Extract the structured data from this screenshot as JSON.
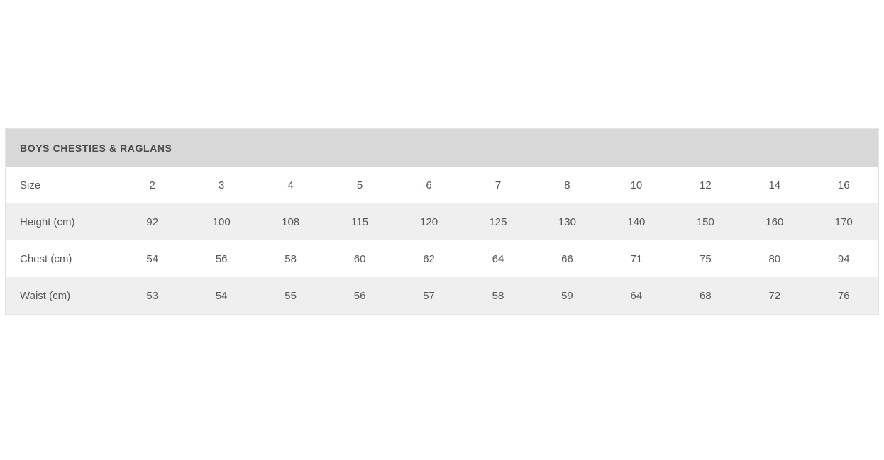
{
  "page": {
    "background_color": "#ffffff"
  },
  "table": {
    "title": "BOYS CHESTIES & RAGLANS",
    "header_bg": "#d8d8d8",
    "title_color": "#4c4c4c",
    "alt_row_bg": "#efefef",
    "cell_text_color": "#55575a",
    "rows": [
      {
        "label": "Size",
        "values": [
          "2",
          "3",
          "4",
          "5",
          "6",
          "7",
          "8",
          "10",
          "12",
          "14",
          "16"
        ]
      },
      {
        "label": "Height (cm)",
        "values": [
          "92",
          "100",
          "108",
          "115",
          "120",
          "125",
          "130",
          "140",
          "150",
          "160",
          "170"
        ]
      },
      {
        "label": "Chest (cm)",
        "values": [
          "54",
          "56",
          "58",
          "60",
          "62",
          "64",
          "66",
          "71",
          "75",
          "80",
          "94"
        ]
      },
      {
        "label": "Waist (cm)",
        "values": [
          "53",
          "54",
          "55",
          "56",
          "57",
          "58",
          "59",
          "64",
          "68",
          "72",
          "76"
        ]
      }
    ]
  },
  "chart_data": {
    "type": "table",
    "title": "BOYS CHESTIES & RAGLANS",
    "columns": [
      "Size",
      "2",
      "3",
      "4",
      "5",
      "6",
      "7",
      "8",
      "10",
      "12",
      "14",
      "16"
    ],
    "rows": [
      [
        "Height (cm)",
        92,
        100,
        108,
        115,
        120,
        125,
        130,
        140,
        150,
        160,
        170
      ],
      [
        "Chest (cm)",
        54,
        56,
        58,
        60,
        62,
        64,
        66,
        71,
        75,
        80,
        94
      ],
      [
        "Waist (cm)",
        53,
        54,
        55,
        56,
        57,
        58,
        59,
        64,
        68,
        72,
        76
      ]
    ]
  }
}
